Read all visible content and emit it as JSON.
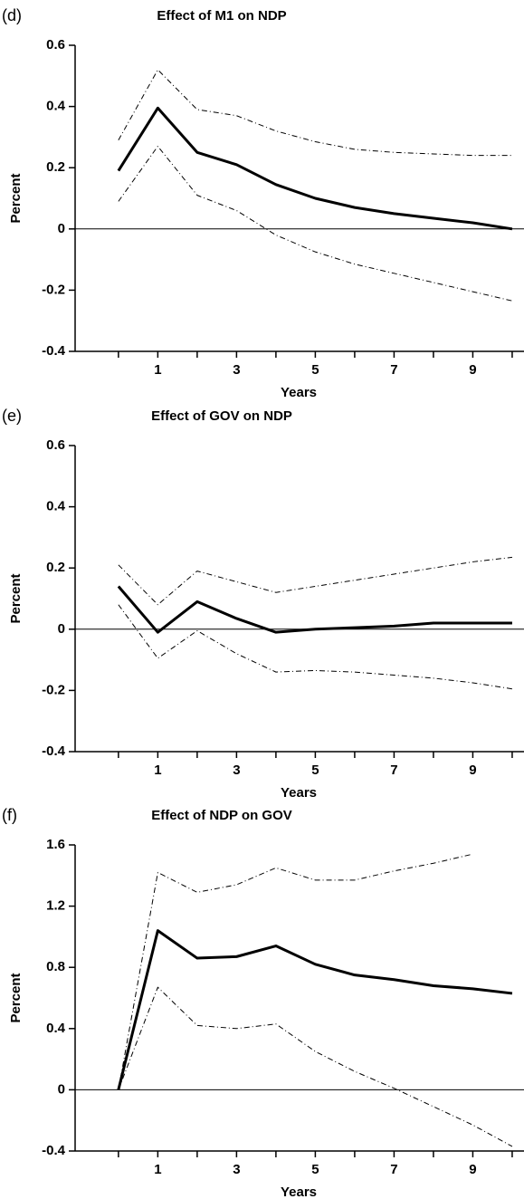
{
  "chart_data": [
    {
      "type": "line",
      "panel": "(d)",
      "title": "Effect of M1 on NDP",
      "ylabel": "Percent",
      "xlabel": "Years",
      "x": [
        0,
        1,
        2,
        3,
        4,
        5,
        6,
        7,
        8,
        9,
        10
      ],
      "xlim": [
        -1.1,
        10.3
      ],
      "xticks": [
        1,
        3,
        5,
        7,
        9
      ],
      "xminorticks": [
        0,
        2,
        4,
        6,
        8,
        10
      ],
      "ylim": [
        -0.4,
        0.6
      ],
      "yticks": [
        0.6,
        0.4,
        0.2,
        0,
        -0.2,
        -0.4
      ],
      "zero_line": true,
      "series": [
        {
          "color": "#000000",
          "width": 3,
          "dash": "none",
          "values": [
            0.19,
            0.395,
            0.25,
            0.21,
            0.145,
            0.1,
            0.07,
            0.05,
            0.035,
            0.02,
            0.0
          ]
        },
        {
          "color": "#000000",
          "width": 1,
          "dash": "6 3 1 3",
          "values": [
            0.29,
            0.52,
            0.39,
            0.37,
            0.32,
            0.285,
            0.26,
            0.25,
            0.245,
            0.24,
            0.24
          ]
        },
        {
          "color": "#000000",
          "width": 1,
          "dash": "6 3 1 3",
          "values": [
            0.09,
            0.27,
            0.11,
            0.06,
            -0.02,
            -0.075,
            -0.115,
            -0.145,
            -0.175,
            -0.205,
            -0.235
          ]
        }
      ]
    },
    {
      "type": "line",
      "panel": "(e)",
      "title": "Effect of GOV on NDP",
      "ylabel": "Percent",
      "xlabel": "Years",
      "x": [
        0,
        1,
        2,
        3,
        4,
        5,
        6,
        7,
        8,
        9,
        10
      ],
      "xlim": [
        -1.1,
        10.3
      ],
      "xticks": [
        1,
        3,
        5,
        7,
        9
      ],
      "xminorticks": [
        0,
        2,
        4,
        6,
        8,
        10
      ],
      "ylim": [
        -0.4,
        0.6
      ],
      "yticks": [
        0.6,
        0.4,
        0.2,
        0,
        -0.2,
        -0.4
      ],
      "zero_line": true,
      "series": [
        {
          "color": "#000000",
          "width": 3,
          "dash": "none",
          "values": [
            0.14,
            -0.01,
            0.09,
            0.035,
            -0.01,
            0.0,
            0.005,
            0.01,
            0.02,
            0.02,
            0.02
          ]
        },
        {
          "color": "#000000",
          "width": 1,
          "dash": "6 3 1 3",
          "values": [
            0.21,
            0.08,
            0.19,
            0.155,
            0.12,
            0.14,
            0.16,
            0.18,
            0.2,
            0.22,
            0.235
          ]
        },
        {
          "color": "#000000",
          "width": 1,
          "dash": "6 3 1 3",
          "values": [
            0.08,
            -0.095,
            -0.005,
            -0.08,
            -0.14,
            -0.135,
            -0.14,
            -0.15,
            -0.16,
            -0.175,
            -0.195
          ]
        }
      ]
    },
    {
      "type": "line",
      "panel": "(f)",
      "title": "Effect of NDP on GOV",
      "ylabel": "Percent",
      "xlabel": "Years",
      "x": [
        0,
        1,
        2,
        3,
        4,
        5,
        6,
        7,
        8,
        9,
        10
      ],
      "xlim": [
        -1.1,
        10.3
      ],
      "xticks": [
        1,
        3,
        5,
        7,
        9
      ],
      "xminorticks": [
        0,
        2,
        4,
        6,
        8,
        10
      ],
      "ylim": [
        -0.4,
        1.6
      ],
      "yticks": [
        1.6,
        1.2,
        0.8,
        0.4,
        0,
        -0.4
      ],
      "zero_line": true,
      "series": [
        {
          "color": "#000000",
          "width": 3,
          "dash": "none",
          "values": [
            0,
            1.04,
            0.86,
            0.87,
            0.94,
            0.82,
            0.75,
            0.72,
            0.68,
            0.66,
            0.63
          ]
        },
        {
          "color": "#000000",
          "width": 1,
          "dash": "6 3 1 3",
          "values": [
            0,
            1.42,
            1.29,
            1.34,
            1.45,
            1.37,
            1.37,
            1.43,
            1.48,
            1.54,
            null
          ]
        },
        {
          "color": "#000000",
          "width": 1,
          "dash": "6 3 1 3",
          "values": [
            0,
            0.67,
            0.42,
            0.4,
            0.43,
            0.25,
            0.12,
            0.01,
            -0.11,
            -0.23,
            -0.37
          ]
        }
      ]
    }
  ]
}
